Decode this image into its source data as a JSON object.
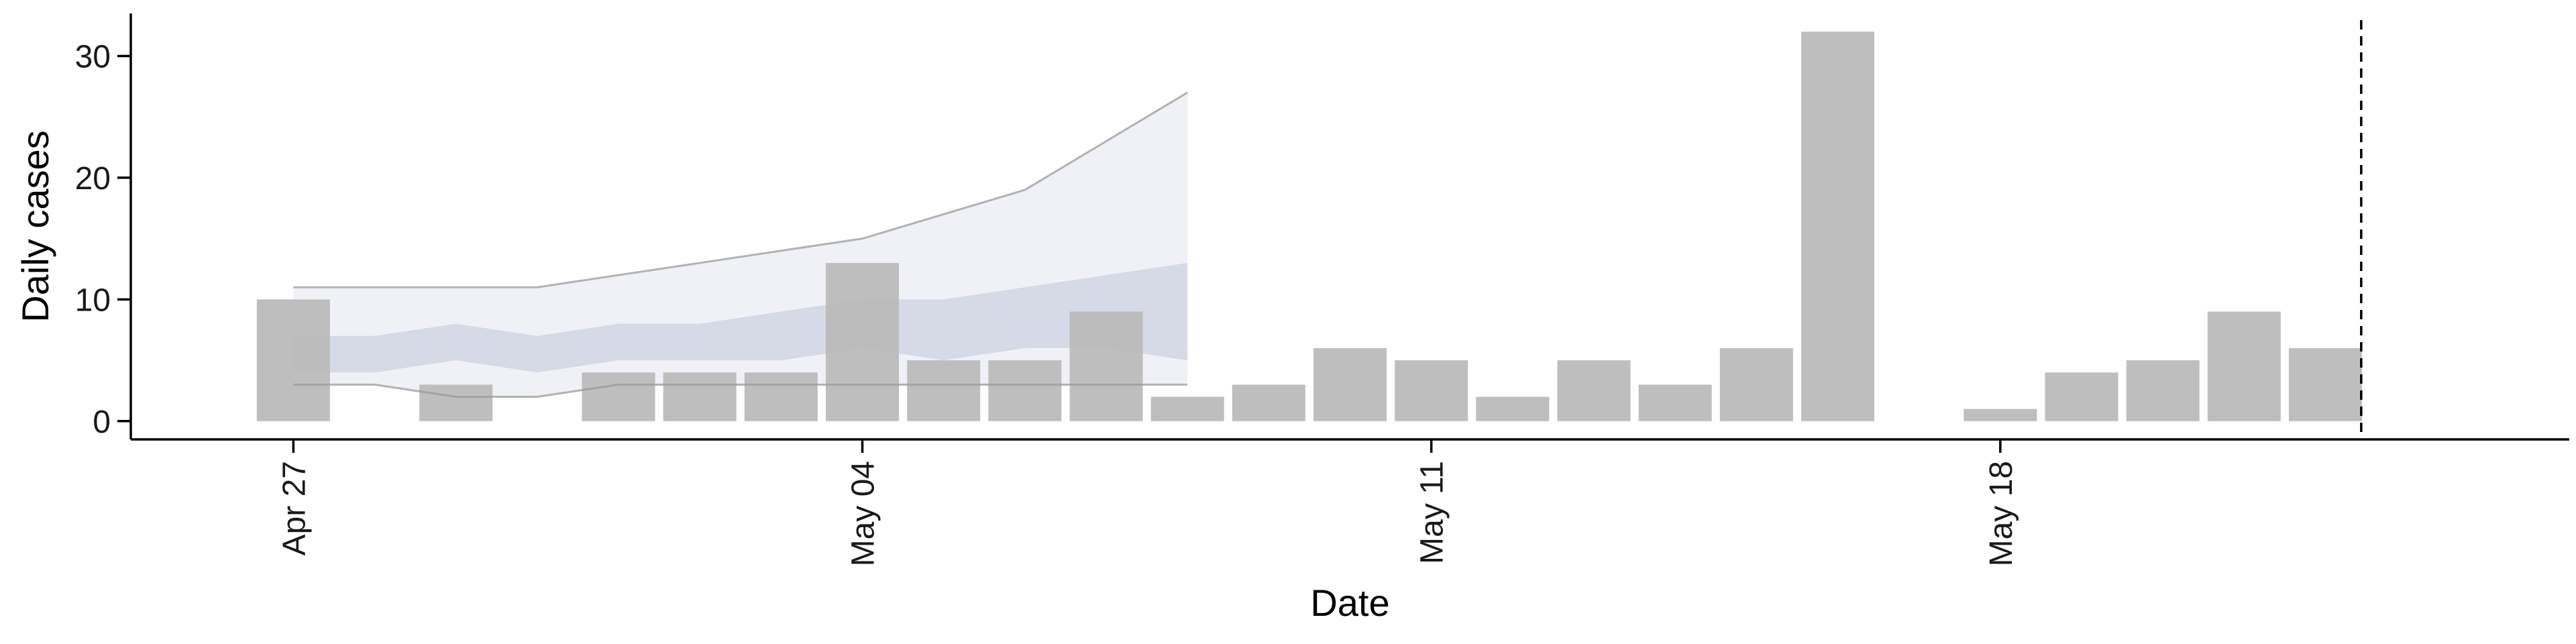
{
  "chart_data": {
    "type": "bar",
    "title": "",
    "xlabel": "Date",
    "ylabel": "Daily cases",
    "x_ticks": [
      {
        "date": "2020-04-27",
        "label": "Apr 27"
      },
      {
        "date": "2020-05-04",
        "label": "May 04"
      },
      {
        "date": "2020-05-11",
        "label": "May 11"
      },
      {
        "date": "2020-05-18",
        "label": "May 18"
      }
    ],
    "y_ticks": [
      0,
      10,
      20,
      30
    ],
    "xlim": [
      "2020-04-25",
      "2020-05-25"
    ],
    "ylim": [
      -1.5,
      33.5
    ],
    "grid": false,
    "legend": "none",
    "bars": {
      "color": "#bbbbbb",
      "x": [
        "2020-04-27",
        "2020-04-28",
        "2020-04-29",
        "2020-04-30",
        "2020-05-01",
        "2020-05-02",
        "2020-05-03",
        "2020-05-04",
        "2020-05-05",
        "2020-05-06",
        "2020-05-07",
        "2020-05-08",
        "2020-05-09",
        "2020-05-10",
        "2020-05-11",
        "2020-05-12",
        "2020-05-13",
        "2020-05-14",
        "2020-05-15",
        "2020-05-16",
        "2020-05-17",
        "2020-05-18",
        "2020-05-19",
        "2020-05-20",
        "2020-05-21",
        "2020-05-22"
      ],
      "values": [
        10,
        0,
        3,
        0,
        4,
        4,
        4,
        13,
        5,
        5,
        9,
        2,
        3,
        6,
        5,
        2,
        5,
        3,
        6,
        32,
        0,
        1,
        4,
        5,
        9,
        6
      ]
    },
    "projection": {
      "x": [
        "2020-04-27",
        "2020-04-28",
        "2020-04-29",
        "2020-04-30",
        "2020-05-01",
        "2020-05-02",
        "2020-05-03",
        "2020-05-04",
        "2020-05-05",
        "2020-05-06",
        "2020-05-07",
        "2020-05-08"
      ],
      "outer_upper": [
        11,
        11,
        11,
        11,
        12,
        13,
        14,
        15,
        17,
        19,
        23,
        27
      ],
      "outer_lower": [
        3,
        3,
        2,
        2,
        3,
        3,
        3,
        3,
        3,
        3,
        3,
        3
      ],
      "inner_upper": [
        7,
        7,
        8,
        7,
        8,
        8,
        9,
        10,
        10,
        11,
        12,
        13
      ],
      "inner_lower": [
        4,
        4,
        5,
        4,
        5,
        5,
        5,
        6,
        5,
        6,
        6,
        5
      ],
      "outer_color": "#dde0ec",
      "inner_color": "#c4c9dc",
      "line_color": "#999999"
    },
    "reference_line": {
      "date": "2020-05-22",
      "offset_days": 0.44,
      "style": "dashed",
      "color": "#000000"
    }
  }
}
